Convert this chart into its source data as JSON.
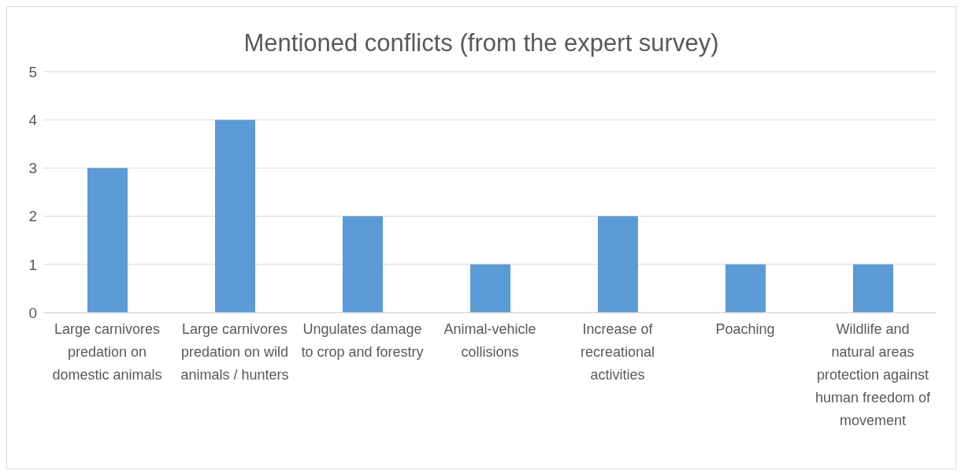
{
  "chart_data": {
    "type": "bar",
    "title": "Mentioned conflicts (from the expert survey)",
    "categories": [
      "Large carnivores predation on domestic animals",
      "Large carnivores predation on wild animals / hunters",
      "Ungulates damage to crop and forestry",
      "Animal-vehicle collisions",
      "Increase of recreational activities",
      "Poaching",
      "Wildlife and natural areas protection against human freedom of movement"
    ],
    "values": [
      3,
      4,
      2,
      1,
      2,
      1,
      1
    ],
    "color": "#5b9bd5",
    "ylim": [
      0,
      5
    ],
    "yticks": [
      0,
      1,
      2,
      3,
      4,
      5
    ],
    "grid": "y",
    "legend": false
  }
}
